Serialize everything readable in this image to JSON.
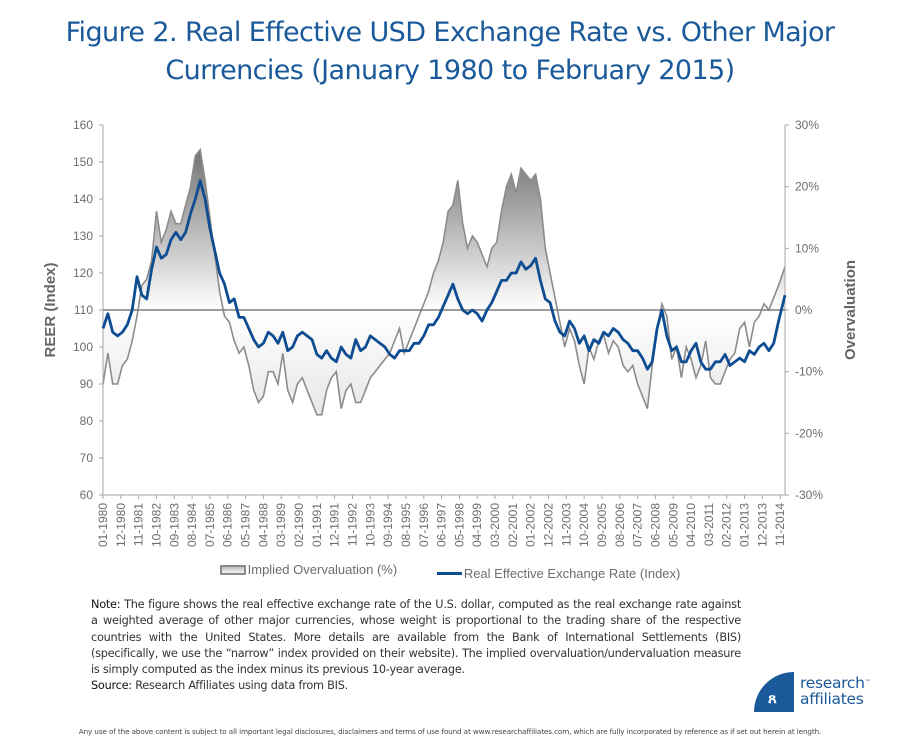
{
  "title": {
    "line1": "Figure 2. Real Effective USD Exchange Rate vs. Other Major",
    "line2": "Currencies (January 1980 to February 2015)"
  },
  "chart_data": {
    "type": "line",
    "title": "Figure 2. Real Effective USD Exchange Rate vs. Other Major Currencies (January 1980 to February 2015)",
    "xlabel": "",
    "ylabel": "REER (Index)",
    "y2label": "Overvaluation",
    "ylim": [
      60,
      160
    ],
    "y2lim": [
      -30,
      30
    ],
    "y_ticks": [
      "160",
      "150",
      "140",
      "130",
      "120",
      "110",
      "100",
      "90",
      "80",
      "70",
      "60"
    ],
    "y2_ticks": [
      "30%",
      "20%",
      "10%",
      "0%",
      "-10%",
      "-20%",
      "-30%"
    ],
    "x_ticks": [
      "01-1980",
      "12-1980",
      "11-1981",
      "10-1982",
      "09-1983",
      "08-1984",
      "07-1985",
      "06-1986",
      "05-1987",
      "04-1988",
      "03-1989",
      "02-1990",
      "01-1991",
      "12-1991",
      "11-1992",
      "10-1993",
      "09-1994",
      "08-1995",
      "07-1996",
      "06-1997",
      "05-1998",
      "04-1999",
      "03-2000",
      "02-2001",
      "01-2002",
      "12-2002",
      "11-2003",
      "10-2004",
      "09-2005",
      "08-2006",
      "07-2007",
      "06-2008",
      "05-2009",
      "04-2010",
      "03-2011",
      "02-2012",
      "01-2013",
      "12-2013",
      "11-2014"
    ],
    "x_range": [
      "01-1980",
      "02-2015"
    ],
    "reference_line": {
      "axis": "y",
      "value": 110,
      "y2_value": 0
    },
    "grid": false,
    "legend_position": "bottom",
    "series": [
      {
        "name": "Implied Overvaluation (%)",
        "axis": "right",
        "style": "area",
        "x_year": [
          1980.0,
          1980.25,
          1980.5,
          1980.75,
          1981.0,
          1981.25,
          1981.5,
          1981.75,
          1982.0,
          1982.25,
          1982.5,
          1982.75,
          1983.0,
          1983.25,
          1983.5,
          1983.75,
          1984.0,
          1984.25,
          1984.5,
          1984.75,
          1985.0,
          1985.25,
          1985.5,
          1985.75,
          1986.0,
          1986.25,
          1986.5,
          1986.75,
          1987.0,
          1987.25,
          1987.5,
          1987.75,
          1988.0,
          1988.25,
          1988.5,
          1988.75,
          1989.0,
          1989.25,
          1989.5,
          1989.75,
          1990.0,
          1990.25,
          1990.5,
          1990.75,
          1991.0,
          1991.25,
          1991.5,
          1991.75,
          1992.0,
          1992.25,
          1992.5,
          1992.75,
          1993.0,
          1993.25,
          1993.5,
          1993.75,
          1994.0,
          1994.25,
          1994.5,
          1994.75,
          1995.0,
          1995.25,
          1995.5,
          1995.75,
          1996.0,
          1996.25,
          1996.5,
          1996.75,
          1997.0,
          1997.25,
          1997.5,
          1997.75,
          1998.0,
          1998.25,
          1998.5,
          1998.75,
          1999.0,
          1999.25,
          1999.5,
          1999.75,
          2000.0,
          2000.25,
          2000.5,
          2000.75,
          2001.0,
          2001.25,
          2001.5,
          2001.75,
          2002.0,
          2002.25,
          2002.5,
          2002.75,
          2003.0,
          2003.25,
          2003.5,
          2003.75,
          2004.0,
          2004.25,
          2004.5,
          2004.75,
          2005.0,
          2005.25,
          2005.5,
          2005.75,
          2006.0,
          2006.25,
          2006.5,
          2006.75,
          2007.0,
          2007.25,
          2007.5,
          2007.75,
          2008.0,
          2008.25,
          2008.5,
          2008.75,
          2009.0,
          2009.25,
          2009.5,
          2009.75,
          2010.0,
          2010.25,
          2010.5,
          2010.75,
          2011.0,
          2011.25,
          2011.5,
          2011.75,
          2012.0,
          2012.25,
          2012.5,
          2012.75,
          2013.0,
          2013.25,
          2013.5,
          2013.75,
          2014.0,
          2014.25,
          2014.5,
          2014.75,
          2015.08
        ],
        "values": [
          -12,
          -7,
          -12,
          -12,
          -9,
          -8,
          -5,
          -1,
          4,
          5,
          8,
          16,
          11,
          13,
          16,
          14,
          14,
          17,
          20,
          25,
          26,
          21,
          15,
          9,
          3,
          -1,
          -2,
          -5,
          -7,
          -6,
          -9,
          -13,
          -15,
          -14,
          -10,
          -10,
          -12,
          -7,
          -13,
          -15,
          -12,
          -11,
          -13,
          -15,
          -17,
          -17,
          -13,
          -11,
          -10,
          -16,
          -13,
          -12,
          -15,
          -15,
          -13,
          -11,
          -10,
          -9,
          -8,
          -7,
          -5,
          -3,
          -7,
          -5,
          -3,
          -1,
          1,
          3,
          6,
          8,
          11,
          16,
          17,
          21,
          14,
          10,
          12,
          11,
          9,
          7,
          10,
          11,
          16,
          20,
          22,
          19,
          23,
          22,
          21,
          22,
          18,
          10,
          6,
          2,
          -2,
          -6,
          -3,
          -5,
          -9,
          -12,
          -6,
          -8,
          -5,
          -4,
          -7,
          -5,
          -6,
          -9,
          -10,
          -9,
          -12,
          -14,
          -16,
          -9,
          -3,
          1,
          -1,
          -8,
          -6,
          -11,
          -6,
          -8,
          -11,
          -9,
          -5,
          -11,
          -12,
          -12,
          -10,
          -8,
          -7,
          -3,
          -2,
          -6,
          -2,
          -1,
          1,
          0,
          2,
          4,
          7,
          14
        ]
      },
      {
        "name": "Real Effective Exchange Rate (Index)",
        "axis": "left",
        "style": "line",
        "color": "#0e4d92",
        "x_year": [
          1980.0,
          1980.25,
          1980.5,
          1980.75,
          1981.0,
          1981.25,
          1981.5,
          1981.75,
          1982.0,
          1982.25,
          1982.5,
          1982.75,
          1983.0,
          1983.25,
          1983.5,
          1983.75,
          1984.0,
          1984.25,
          1984.5,
          1984.75,
          1985.0,
          1985.25,
          1985.5,
          1985.75,
          1986.0,
          1986.25,
          1986.5,
          1986.75,
          1987.0,
          1987.25,
          1987.5,
          1987.75,
          1988.0,
          1988.25,
          1988.5,
          1988.75,
          1989.0,
          1989.25,
          1989.5,
          1989.75,
          1990.0,
          1990.25,
          1990.5,
          1990.75,
          1991.0,
          1991.25,
          1991.5,
          1991.75,
          1992.0,
          1992.25,
          1992.5,
          1992.75,
          1993.0,
          1993.25,
          1993.5,
          1993.75,
          1994.0,
          1994.25,
          1994.5,
          1994.75,
          1995.0,
          1995.25,
          1995.5,
          1995.75,
          1996.0,
          1996.25,
          1996.5,
          1996.75,
          1997.0,
          1997.25,
          1997.5,
          1997.75,
          1998.0,
          1998.25,
          1998.5,
          1998.75,
          1999.0,
          1999.25,
          1999.5,
          1999.75,
          2000.0,
          2000.25,
          2000.5,
          2000.75,
          2001.0,
          2001.25,
          2001.5,
          2001.75,
          2002.0,
          2002.25,
          2002.5,
          2002.75,
          2003.0,
          2003.25,
          2003.5,
          2003.75,
          2004.0,
          2004.25,
          2004.5,
          2004.75,
          2005.0,
          2005.25,
          2005.5,
          2005.75,
          2006.0,
          2006.25,
          2006.5,
          2006.75,
          2007.0,
          2007.25,
          2007.5,
          2007.75,
          2008.0,
          2008.25,
          2008.5,
          2008.75,
          2009.0,
          2009.25,
          2009.5,
          2009.75,
          2010.0,
          2010.25,
          2010.5,
          2010.75,
          2011.0,
          2011.25,
          2011.5,
          2011.75,
          2012.0,
          2012.25,
          2012.5,
          2012.75,
          2013.0,
          2013.25,
          2013.5,
          2013.75,
          2014.0,
          2014.25,
          2014.5,
          2014.75,
          2015.08
        ],
        "values": [
          105,
          109,
          104,
          103,
          104,
          106,
          110,
          119,
          114,
          113,
          121,
          127,
          124,
          125,
          129,
          131,
          129,
          131,
          136,
          140,
          145,
          140,
          132,
          126,
          120,
          117,
          112,
          113,
          108,
          108,
          105,
          102,
          100,
          101,
          104,
          103,
          101,
          104,
          99,
          100,
          103,
          104,
          103,
          102,
          98,
          97,
          99,
          97,
          96,
          100,
          98,
          97,
          102,
          99,
          100,
          103,
          102,
          101,
          100,
          98,
          97,
          99,
          99,
          99,
          101,
          101,
          103,
          106,
          106,
          108,
          111,
          114,
          117,
          113,
          110,
          109,
          110,
          109,
          107,
          110,
          112,
          115,
          118,
          118,
          120,
          120,
          123,
          121,
          122,
          124,
          118,
          113,
          112,
          107,
          104,
          103,
          107,
          105,
          101,
          103,
          99,
          102,
          101,
          104,
          103,
          105,
          104,
          102,
          101,
          99,
          99,
          97,
          94,
          96,
          105,
          110,
          103,
          99,
          100,
          96,
          96,
          99,
          101,
          96,
          94,
          94,
          96,
          96,
          98,
          95,
          96,
          97,
          96,
          99,
          98,
          100,
          101,
          99,
          101,
          107,
          114
        ]
      }
    ]
  },
  "legend": {
    "items": [
      {
        "label": "Implied Overvaluation (%)",
        "icon": "area-swatch"
      },
      {
        "label": "Real Effective Exchange Rate (Index)",
        "icon": "line-swatch"
      }
    ]
  },
  "note": {
    "note_label": "Note:",
    "note_text": " The figure shows the real effective exchange rate of the U.S. dollar, computed as the real exchange rate against a weighted average of other major currencies, whose weight is proportional to the trading share of the respective countries with the United States. More details are available from the Bank of International Settlements (BIS) (specifically, we use the “narrow” index provided on their website). The implied overvaluation/undervaluation measure is simply computed as the index minus its previous 10-year average.",
    "source_label": "Source:",
    "source_text": " Research Affiliates using data from BIS."
  },
  "logo": {
    "glyph": "ꭤ",
    "line1": "research",
    "tm": "™",
    "line2": "affiliates",
    "brand_color": "#1a5a9a"
  },
  "disclaimer": "Any use of the above content is subject to all important legal disclosures, disclaimers and terms of use found at www.researchaffiliates.com, which are fully incorporated by reference as if set out herein at length."
}
